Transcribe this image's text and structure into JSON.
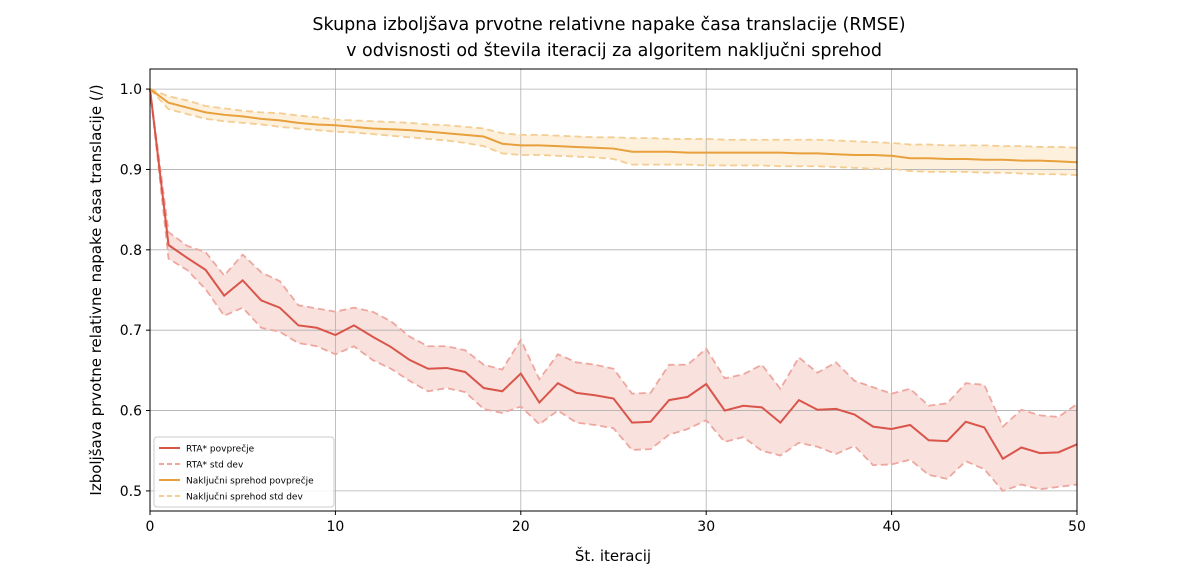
{
  "chart_data": {
    "type": "line",
    "title": [
      "Skupna izboljšava prvotne relativne napake časa translacije (RMSE)",
      "v odvisnosti od števila iteracij za algoritem naključni sprehod"
    ],
    "xlabel": "Št. iteracij",
    "ylabel": "Izboljšava prvotne relativne napake časa translacije (/)",
    "xlim": [
      0,
      50
    ],
    "ylim": [
      0.475,
      1.025
    ],
    "xticks": [
      0,
      10,
      20,
      30,
      40,
      50
    ],
    "yticks": [
      0.5,
      0.6,
      0.7,
      0.8,
      0.9,
      1.0
    ],
    "ytick_labels": [
      "0.5",
      "0.6",
      "0.7",
      "0.8",
      "0.9",
      "1.0"
    ],
    "grid": true,
    "legend_position": "lower-left",
    "colors": {
      "rta_mean": "#d9554a",
      "rta_std": "#eea79f",
      "rta_fill": "#f9e1de",
      "rw_mean": "#e8a03c",
      "rw_std": "#f4cd93",
      "rw_fill": "#fdf1de"
    },
    "series": [
      {
        "name": "RTA* povprečje",
        "style": "solid",
        "x": [
          0,
          1,
          2,
          3,
          4,
          5,
          6,
          7,
          8,
          9,
          10,
          11,
          12,
          13,
          14,
          15,
          16,
          17,
          18,
          19,
          20,
          21,
          22,
          23,
          24,
          25,
          26,
          27,
          28,
          29,
          30,
          31,
          32,
          33,
          34,
          35,
          36,
          37,
          38,
          39,
          40,
          41,
          42,
          43,
          44,
          45,
          46,
          47,
          48,
          49,
          50
        ],
        "y": [
          1.0,
          0.806,
          0.79,
          0.775,
          0.743,
          0.762,
          0.737,
          0.728,
          0.706,
          0.703,
          0.694,
          0.706,
          0.692,
          0.679,
          0.663,
          0.652,
          0.653,
          0.648,
          0.628,
          0.624,
          0.646,
          0.61,
          0.634,
          0.622,
          0.619,
          0.615,
          0.585,
          0.586,
          0.613,
          0.617,
          0.633,
          0.6,
          0.606,
          0.604,
          0.585,
          0.613,
          0.601,
          0.602,
          0.595,
          0.58,
          0.577,
          0.582,
          0.563,
          0.562,
          0.586,
          0.579,
          0.54,
          0.554,
          0.547,
          0.548,
          0.558
        ],
        "std_upper": [
          1.0,
          0.822,
          0.805,
          0.797,
          0.768,
          0.794,
          0.772,
          0.761,
          0.731,
          0.727,
          0.723,
          0.728,
          0.723,
          0.711,
          0.692,
          0.68,
          0.68,
          0.675,
          0.657,
          0.651,
          0.688,
          0.639,
          0.67,
          0.66,
          0.657,
          0.652,
          0.621,
          0.622,
          0.657,
          0.657,
          0.677,
          0.64,
          0.645,
          0.657,
          0.627,
          0.666,
          0.647,
          0.66,
          0.637,
          0.629,
          0.621,
          0.627,
          0.606,
          0.609,
          0.634,
          0.632,
          0.58,
          0.601,
          0.594,
          0.592,
          0.608
        ],
        "std_lower": [
          1.0,
          0.789,
          0.775,
          0.751,
          0.718,
          0.728,
          0.703,
          0.698,
          0.684,
          0.68,
          0.67,
          0.68,
          0.663,
          0.652,
          0.637,
          0.624,
          0.628,
          0.623,
          0.602,
          0.597,
          0.605,
          0.583,
          0.6,
          0.585,
          0.582,
          0.578,
          0.551,
          0.552,
          0.57,
          0.577,
          0.588,
          0.561,
          0.567,
          0.55,
          0.544,
          0.56,
          0.555,
          0.546,
          0.556,
          0.532,
          0.533,
          0.539,
          0.52,
          0.515,
          0.537,
          0.527,
          0.5,
          0.508,
          0.502,
          0.505,
          0.508
        ]
      },
      {
        "name": "Naključni sprehod povprečje",
        "style": "solid",
        "x": [
          0,
          1,
          2,
          3,
          4,
          5,
          6,
          7,
          8,
          9,
          10,
          11,
          12,
          13,
          14,
          15,
          16,
          17,
          18,
          19,
          20,
          21,
          22,
          23,
          24,
          25,
          26,
          27,
          28,
          29,
          30,
          31,
          32,
          33,
          34,
          35,
          36,
          37,
          38,
          39,
          40,
          41,
          42,
          43,
          44,
          45,
          46,
          47,
          48,
          49,
          50
        ],
        "y": [
          1.0,
          0.983,
          0.977,
          0.971,
          0.968,
          0.966,
          0.963,
          0.961,
          0.958,
          0.956,
          0.955,
          0.953,
          0.951,
          0.95,
          0.949,
          0.947,
          0.945,
          0.943,
          0.941,
          0.932,
          0.93,
          0.93,
          0.929,
          0.928,
          0.927,
          0.926,
          0.922,
          0.922,
          0.922,
          0.921,
          0.921,
          0.921,
          0.921,
          0.921,
          0.921,
          0.92,
          0.92,
          0.919,
          0.918,
          0.918,
          0.917,
          0.914,
          0.914,
          0.913,
          0.913,
          0.912,
          0.912,
          0.911,
          0.911,
          0.91,
          0.909
        ],
        "std_upper": [
          1.0,
          0.991,
          0.986,
          0.979,
          0.976,
          0.973,
          0.971,
          0.97,
          0.967,
          0.965,
          0.962,
          0.961,
          0.96,
          0.959,
          0.958,
          0.956,
          0.955,
          0.953,
          0.951,
          0.945,
          0.943,
          0.943,
          0.942,
          0.941,
          0.94,
          0.94,
          0.939,
          0.939,
          0.938,
          0.938,
          0.938,
          0.937,
          0.937,
          0.937,
          0.937,
          0.937,
          0.937,
          0.936,
          0.935,
          0.934,
          0.933,
          0.931,
          0.931,
          0.93,
          0.93,
          0.93,
          0.929,
          0.929,
          0.928,
          0.928,
          0.927
        ],
        "std_lower": [
          1.0,
          0.975,
          0.969,
          0.963,
          0.96,
          0.958,
          0.956,
          0.953,
          0.951,
          0.949,
          0.947,
          0.946,
          0.944,
          0.942,
          0.94,
          0.938,
          0.936,
          0.933,
          0.929,
          0.92,
          0.918,
          0.918,
          0.917,
          0.916,
          0.915,
          0.913,
          0.906,
          0.906,
          0.906,
          0.906,
          0.905,
          0.905,
          0.905,
          0.905,
          0.904,
          0.904,
          0.904,
          0.903,
          0.902,
          0.901,
          0.901,
          0.898,
          0.897,
          0.897,
          0.897,
          0.896,
          0.896,
          0.895,
          0.894,
          0.894,
          0.893
        ]
      }
    ],
    "legend": [
      {
        "label": "RTA* povprečje",
        "style": "solid",
        "color": "#d9554a"
      },
      {
        "label": "RTA* std dev",
        "style": "dashed",
        "color": "#eea79f"
      },
      {
        "label": "Naključni sprehod povprečje",
        "style": "solid",
        "color": "#e8a03c"
      },
      {
        "label": "Naključni sprehod std dev",
        "style": "dashed",
        "color": "#f4cd93"
      }
    ]
  }
}
